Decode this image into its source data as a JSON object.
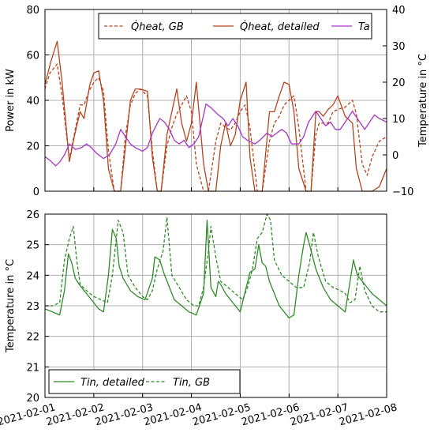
{
  "chart_data": [
    {
      "type": "line",
      "ylabel": "Power in kW",
      "y2label": "Temperature in °C",
      "ylim": [
        0,
        80
      ],
      "yticks": [
        "0",
        "20",
        "40",
        "60",
        "80"
      ],
      "y2lim": [
        -10,
        40
      ],
      "y2ticks": [
        "−10",
        "0",
        "10",
        "20",
        "30",
        "40"
      ],
      "xlim": [
        0,
        7
      ],
      "grid": true,
      "legend_position": "top",
      "series": [
        {
          "name": "Q̇heat, GB",
          "axis": "left",
          "color": "#b5441e",
          "style": "dashed",
          "x": [
            0,
            0.1,
            0.25,
            0.35,
            0.5,
            0.6,
            0.72,
            0.8,
            0.9,
            1.0,
            1.1,
            1.2,
            1.3,
            1.42,
            1.55,
            1.65,
            1.75,
            1.85,
            1.95,
            2.1,
            2.2,
            2.3,
            2.38,
            2.5,
            2.6,
            2.7,
            2.8,
            2.9,
            3.0,
            3.1,
            3.25,
            3.35,
            3.5,
            3.6,
            3.7,
            3.8,
            3.9,
            4.0,
            4.1,
            4.2,
            4.35,
            4.45,
            4.6,
            4.7,
            4.8,
            4.9,
            5.0,
            5.1,
            5.2,
            5.35,
            5.45,
            5.55,
            5.62,
            5.7,
            5.8,
            5.9,
            6.0,
            6.15,
            6.3,
            6.38,
            6.5,
            6.6,
            6.7,
            6.85,
            7.0
          ],
          "y": [
            45,
            52,
            56,
            42,
            14,
            25,
            38,
            38,
            44,
            48,
            50,
            44,
            18,
            0,
            0,
            25,
            38,
            43,
            45,
            42,
            18,
            0,
            0,
            20,
            28,
            34,
            38,
            42,
            35,
            12,
            0,
            0,
            22,
            30,
            28,
            27,
            30,
            35,
            38,
            28,
            0,
            0,
            22,
            30,
            33,
            38,
            40,
            42,
            28,
            0,
            0,
            25,
            30,
            30,
            30,
            35,
            36,
            37,
            40,
            34,
            12,
            7,
            15,
            22,
            24
          ]
        },
        {
          "name": "Q̇heat, detailed",
          "axis": "left",
          "color": "#b5441e",
          "style": "solid",
          "x": [
            0,
            0.12,
            0.25,
            0.35,
            0.5,
            0.6,
            0.72,
            0.8,
            0.92,
            1.0,
            1.1,
            1.2,
            1.3,
            1.42,
            1.55,
            1.65,
            1.75,
            1.85,
            1.95,
            2.1,
            2.2,
            2.3,
            2.38,
            2.5,
            2.6,
            2.7,
            2.8,
            2.9,
            3.0,
            3.1,
            3.25,
            3.35,
            3.5,
            3.6,
            3.7,
            3.8,
            3.9,
            4.0,
            4.12,
            4.2,
            4.3,
            4.45,
            4.6,
            4.7,
            4.8,
            4.9,
            5.0,
            5.1,
            5.2,
            5.35,
            5.45,
            5.55,
            5.62,
            5.7,
            5.8,
            5.9,
            6.0,
            6.15,
            6.3,
            6.38,
            6.5,
            6.6,
            6.7,
            6.85,
            7.0
          ],
          "y": [
            47,
            57,
            66,
            48,
            13,
            24,
            35,
            32,
            47,
            52,
            53,
            40,
            10,
            0,
            0,
            20,
            40,
            45,
            45,
            44,
            15,
            0,
            0,
            25,
            35,
            45,
            30,
            22,
            30,
            48,
            12,
            0,
            0,
            20,
            30,
            20,
            25,
            40,
            48,
            15,
            0,
            0,
            35,
            35,
            42,
            48,
            47,
            35,
            10,
            0,
            0,
            35,
            35,
            33,
            36,
            38,
            42,
            33,
            30,
            10,
            0,
            0,
            0,
            2,
            10
          ]
        },
        {
          "name": "Ta",
          "axis": "right",
          "color": "#a733c8",
          "style": "solid",
          "x": [
            0,
            0.1,
            0.22,
            0.3,
            0.4,
            0.5,
            0.62,
            0.75,
            0.85,
            0.95,
            1.05,
            1.2,
            1.32,
            1.45,
            1.55,
            1.65,
            1.75,
            1.85,
            2.0,
            2.1,
            2.2,
            2.35,
            2.45,
            2.55,
            2.65,
            2.75,
            2.85,
            2.95,
            3.05,
            3.15,
            3.3,
            3.4,
            3.55,
            3.65,
            3.75,
            3.85,
            3.95,
            4.05,
            4.15,
            4.3,
            4.4,
            4.55,
            4.65,
            4.75,
            4.85,
            4.95,
            5.05,
            5.2,
            5.3,
            5.4,
            5.55,
            5.65,
            5.75,
            5.85,
            5.95,
            6.05,
            6.2,
            6.3,
            6.4,
            6.55,
            6.65,
            6.75,
            6.85,
            7.0
          ],
          "y": [
            -0.5,
            -1.5,
            -3,
            -2,
            0,
            3,
            1.5,
            2,
            3,
            2,
            0.5,
            -1,
            0,
            3,
            7,
            5,
            3,
            2,
            1,
            2,
            6,
            10,
            9,
            7,
            4,
            3,
            4,
            2,
            3,
            5,
            14,
            13,
            11,
            10,
            8,
            10,
            8,
            5,
            4,
            3,
            4,
            6,
            5,
            6,
            7,
            6,
            3,
            3,
            5,
            9,
            12,
            10,
            8,
            9,
            7,
            7,
            10,
            12,
            10,
            7,
            9,
            11,
            10,
            9
          ]
        }
      ]
    },
    {
      "type": "line",
      "ylabel": "Temperature in °C",
      "ylim": [
        20,
        26
      ],
      "yticks": [
        "20",
        "21",
        "22",
        "23",
        "24",
        "25",
        "26"
      ],
      "xlim": [
        0,
        7
      ],
      "xticks": [
        "2021-02-01",
        "2021-02-02",
        "2021-02-03",
        "2021-02-04",
        "2021-02-05",
        "2021-02-06",
        "2021-02-07",
        "2021-02-08"
      ],
      "grid": true,
      "legend_position": "bottom-left",
      "series": [
        {
          "name": "Tin, detailed",
          "color": "#2e8b26",
          "style": "solid",
          "x": [
            0,
            0.15,
            0.3,
            0.4,
            0.48,
            0.55,
            0.62,
            0.7,
            0.8,
            0.9,
            1.0,
            1.1,
            1.2,
            1.3,
            1.38,
            1.46,
            1.52,
            1.6,
            1.75,
            1.9,
            2.05,
            2.2,
            2.25,
            2.35,
            2.45,
            2.55,
            2.65,
            2.8,
            2.95,
            3.1,
            3.25,
            3.32,
            3.4,
            3.5,
            3.55,
            3.6,
            3.7,
            3.85,
            4.0,
            4.2,
            4.3,
            4.38,
            4.45,
            4.52,
            4.6,
            4.7,
            4.8,
            4.9,
            5.0,
            5.1,
            5.2,
            5.3,
            5.35,
            5.42,
            5.55,
            5.7,
            5.85,
            6.0,
            6.15,
            6.25,
            6.32,
            6.4,
            6.55,
            6.7,
            6.85,
            7.0
          ],
          "y": [
            22.9,
            22.8,
            22.7,
            23.5,
            24.7,
            24.4,
            23.9,
            23.7,
            23.5,
            23.3,
            23.1,
            22.9,
            22.8,
            24.0,
            25.5,
            25.2,
            24.3,
            23.9,
            23.5,
            23.3,
            23.2,
            23.9,
            24.6,
            24.5,
            24.0,
            23.6,
            23.2,
            23.0,
            22.8,
            22.7,
            23.4,
            25.8,
            23.6,
            23.3,
            23.8,
            23.7,
            23.4,
            23.1,
            22.8,
            24.1,
            24.2,
            25.0,
            24.4,
            24.3,
            23.8,
            23.4,
            23.0,
            22.8,
            22.6,
            22.7,
            24.0,
            25.0,
            25.4,
            25.0,
            24.2,
            23.6,
            23.2,
            23.0,
            22.8,
            23.8,
            24.5,
            24.0,
            23.7,
            23.4,
            23.2,
            23.0
          ]
        },
        {
          "name": "Tin, GB",
          "color": "#2e8b26",
          "style": "dashed",
          "x": [
            0,
            0.15,
            0.3,
            0.4,
            0.5,
            0.58,
            0.65,
            0.72,
            0.85,
            1.0,
            1.15,
            1.28,
            1.38,
            1.5,
            1.6,
            1.7,
            1.85,
            2.0,
            2.1,
            2.2,
            2.3,
            2.42,
            2.5,
            2.6,
            2.75,
            2.9,
            3.05,
            3.15,
            3.25,
            3.35,
            3.4,
            3.5,
            3.6,
            3.75,
            3.9,
            4.05,
            4.15,
            4.25,
            4.35,
            4.45,
            4.55,
            4.62,
            4.7,
            4.85,
            5.0,
            5.15,
            5.3,
            5.42,
            5.5,
            5.6,
            5.75,
            5.9,
            6.05,
            6.15,
            6.25,
            6.35,
            6.45,
            6.55,
            6.7,
            6.85,
            7.0
          ],
          "y": [
            23.0,
            23.0,
            23.1,
            24.5,
            25.2,
            25.6,
            24.5,
            23.7,
            23.5,
            23.3,
            23.2,
            23.1,
            24.0,
            25.8,
            25.4,
            24.0,
            23.6,
            23.3,
            23.2,
            23.5,
            24.2,
            24.8,
            25.9,
            24.0,
            23.6,
            23.2,
            23.0,
            23.0,
            23.6,
            24.8,
            25.6,
            24.6,
            23.8,
            23.6,
            23.4,
            23.2,
            23.6,
            24.2,
            25.2,
            25.4,
            26.0,
            25.8,
            24.5,
            24.0,
            23.8,
            23.6,
            23.6,
            24.4,
            25.4,
            24.6,
            23.8,
            23.6,
            23.5,
            23.4,
            23.1,
            23.2,
            24.3,
            23.5,
            23.0,
            22.8,
            22.8
          ]
        }
      ]
    }
  ]
}
